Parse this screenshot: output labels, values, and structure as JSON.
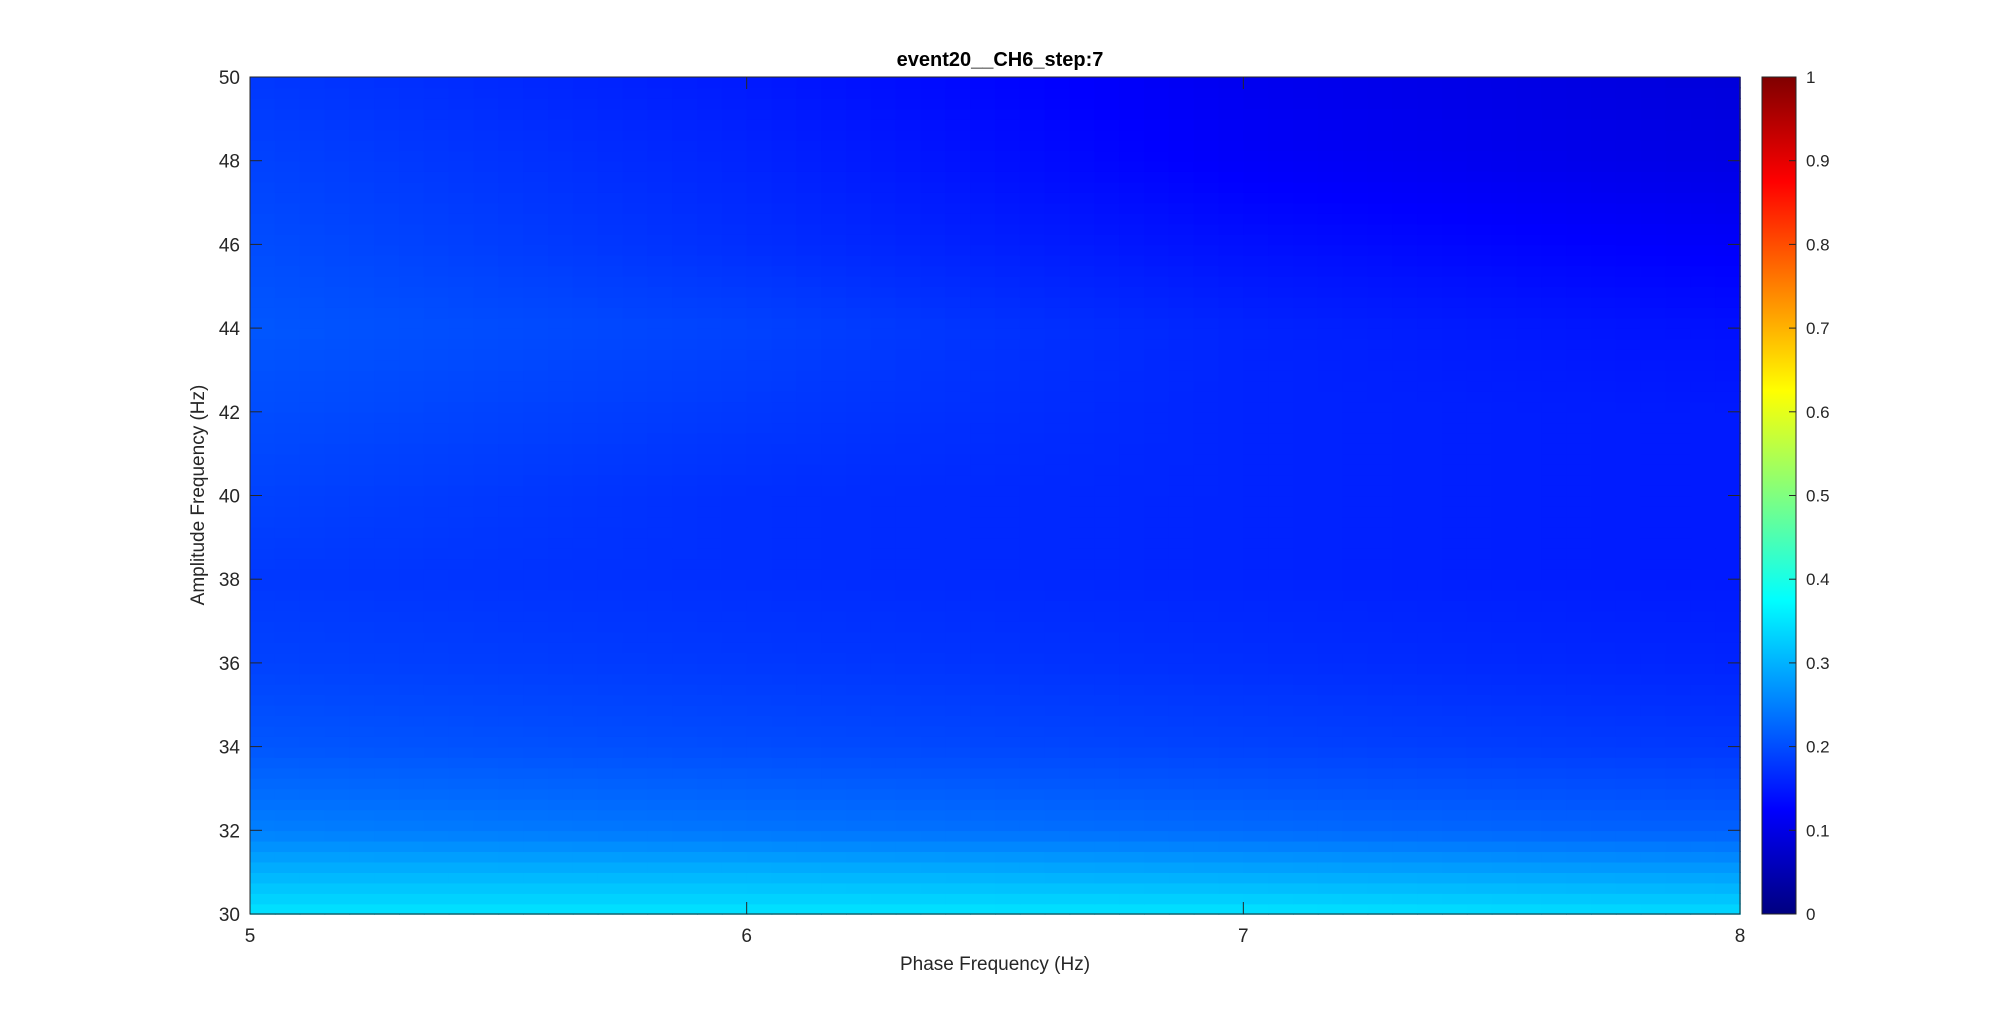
{
  "chart_data": {
    "type": "heatmap",
    "title": "event20__CH6_step:7",
    "xlabel": "Phase Frequency (Hz)",
    "ylabel": "Amplitude Frequency (Hz)",
    "xlim": [
      5,
      8
    ],
    "ylim": [
      30,
      50
    ],
    "xticks": [
      "5",
      "6",
      "7",
      "8"
    ],
    "yticks": [
      "30",
      "32",
      "34",
      "36",
      "38",
      "40",
      "42",
      "44",
      "46",
      "48",
      "50"
    ],
    "colormap": "jet",
    "colorbar": {
      "range": [
        0,
        1
      ],
      "ticks": [
        "0",
        "0.1",
        "0.2",
        "0.3",
        "0.4",
        "0.5",
        "0.6",
        "0.7",
        "0.8",
        "0.9",
        "1"
      ]
    },
    "x": [
      5,
      6,
      7,
      8
    ],
    "y": [
      30,
      31,
      32,
      34,
      36,
      38,
      40,
      42,
      44,
      46,
      48,
      50
    ],
    "z": [
      [
        0.35,
        0.35,
        0.35,
        0.34
      ],
      [
        0.3,
        0.3,
        0.29,
        0.28
      ],
      [
        0.25,
        0.24,
        0.23,
        0.22
      ],
      [
        0.21,
        0.2,
        0.19,
        0.18
      ],
      [
        0.19,
        0.18,
        0.17,
        0.16
      ],
      [
        0.18,
        0.17,
        0.16,
        0.15
      ],
      [
        0.19,
        0.17,
        0.16,
        0.15
      ],
      [
        0.2,
        0.18,
        0.16,
        0.15
      ],
      [
        0.21,
        0.19,
        0.16,
        0.14
      ],
      [
        0.2,
        0.17,
        0.14,
        0.12
      ],
      [
        0.19,
        0.16,
        0.12,
        0.1
      ],
      [
        0.18,
        0.15,
        0.11,
        0.09
      ]
    ]
  }
}
